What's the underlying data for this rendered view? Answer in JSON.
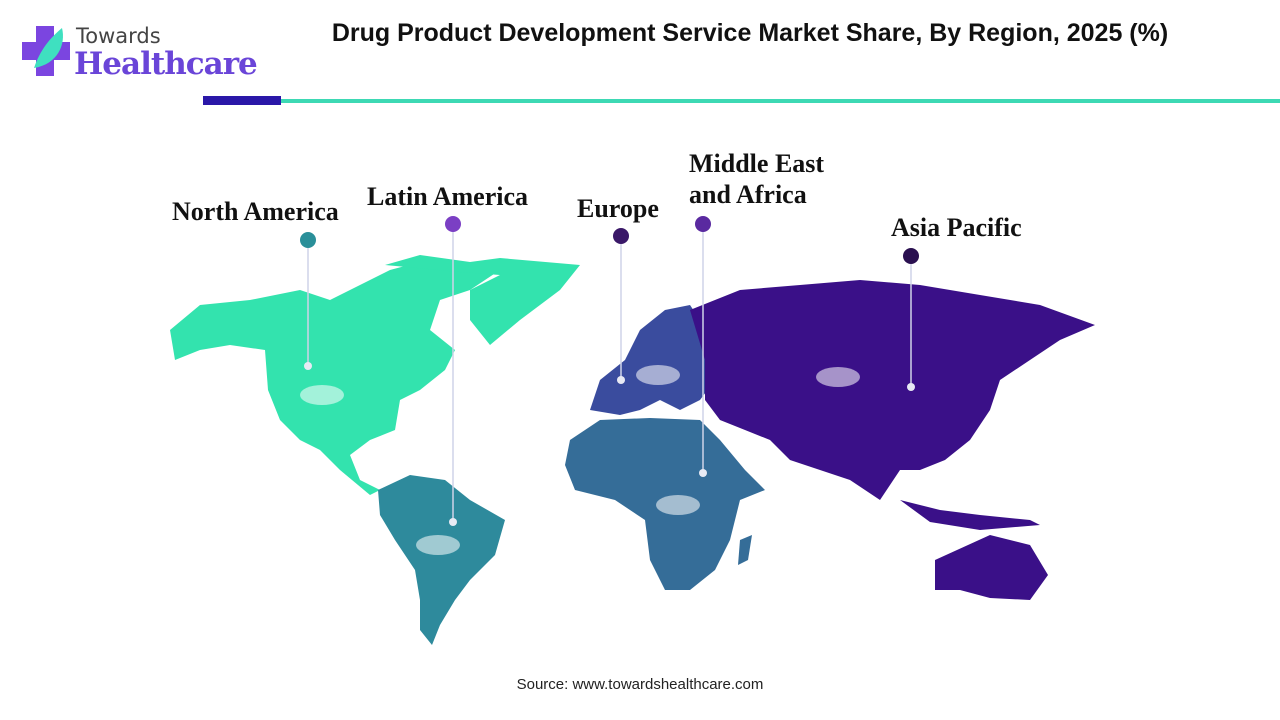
{
  "logo": {
    "top": "Towards",
    "main": "Healthcare"
  },
  "title": "Drug Product Development Service Market Share, By Region, 2025 (%)",
  "regions": [
    {
      "name": "North America",
      "color": "#33e3ae",
      "dot": "#2a8f99"
    },
    {
      "name": "Latin America",
      "color": "#2e8a9c",
      "dot": "#7b3fc4"
    },
    {
      "name": "Europe",
      "color": "#3a4c9e",
      "dot": "#3a1868"
    },
    {
      "name": "Middle East and Africa",
      "color": "#356d98",
      "dot": "#5a2aa0"
    },
    {
      "name": "Asia Pacific",
      "color": "#3a1088",
      "dot": "#2a1050"
    }
  ],
  "source": "Source: www.towardshealthcare.com"
}
